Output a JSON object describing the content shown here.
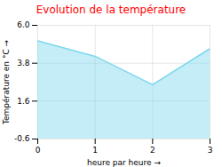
{
  "chart_data": {
    "type": "area",
    "title": "Evolution de la température",
    "title_color": "#ff0000",
    "xlabel": "heure par heure",
    "ylabel": "Température en °C",
    "x": [
      0,
      1,
      2,
      3
    ],
    "values": [
      5.1,
      4.2,
      2.55,
      4.65
    ],
    "color": "#7dd8ee",
    "xlim": [
      0,
      3
    ],
    "ylim": [
      -0.6,
      6.0
    ],
    "xticks": [
      0,
      1,
      2,
      3
    ],
    "yticks": [
      -0.6,
      1.6,
      3.8,
      {
        "value": 6.0,
        "label": "6.0"
      }
    ],
    "grid": true
  }
}
